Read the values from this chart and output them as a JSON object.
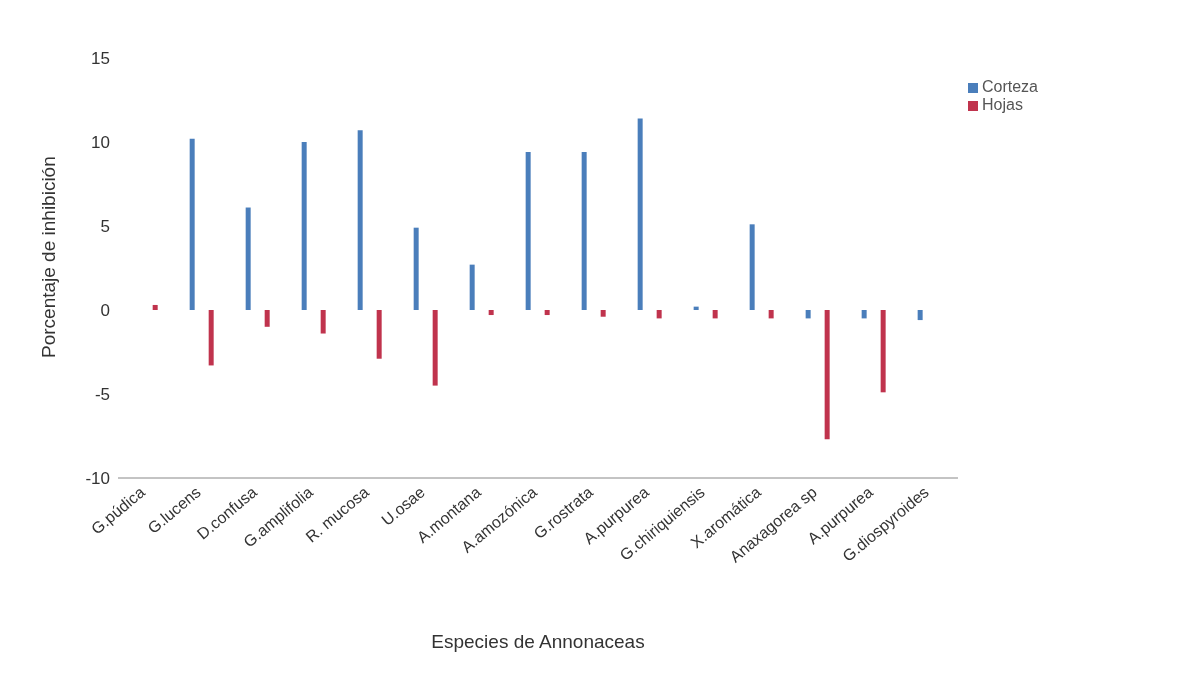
{
  "chart_data": {
    "type": "bar",
    "xlabel": "Especies de Annonaceas",
    "ylabel": "Porcentaje de inhibición",
    "categories": [
      "G.púdica",
      "G.lucens",
      "D.confusa",
      "G.amplifolia",
      "R. mucosa",
      "U.osae",
      "A.montana",
      "A.amozónica",
      "G.rostrata",
      "A.purpurea",
      "G.chiriquiensis",
      "X.aromática",
      "Anaxagorea sp",
      "A.purpurea",
      "G.diospyroides"
    ],
    "series": [
      {
        "name": "Corteza",
        "color": "#4a7ebb",
        "values": [
          null,
          10.2,
          6.1,
          10.0,
          10.7,
          4.9,
          2.7,
          9.4,
          9.4,
          11.4,
          0.2,
          5.1,
          -0.5,
          -0.5,
          -0.6
        ]
      },
      {
        "name": "Hojas",
        "color": "#c0334d",
        "values": [
          0.3,
          -3.3,
          -1.0,
          -1.4,
          -2.9,
          -4.5,
          -0.3,
          -0.3,
          -0.4,
          -0.5,
          -0.5,
          -0.5,
          -7.7,
          -4.9,
          null
        ]
      }
    ],
    "ylim": [
      -10,
      15
    ],
    "yticks": [
      -10,
      -5,
      0,
      5,
      10,
      15
    ],
    "grid": false,
    "legend": "top right"
  }
}
